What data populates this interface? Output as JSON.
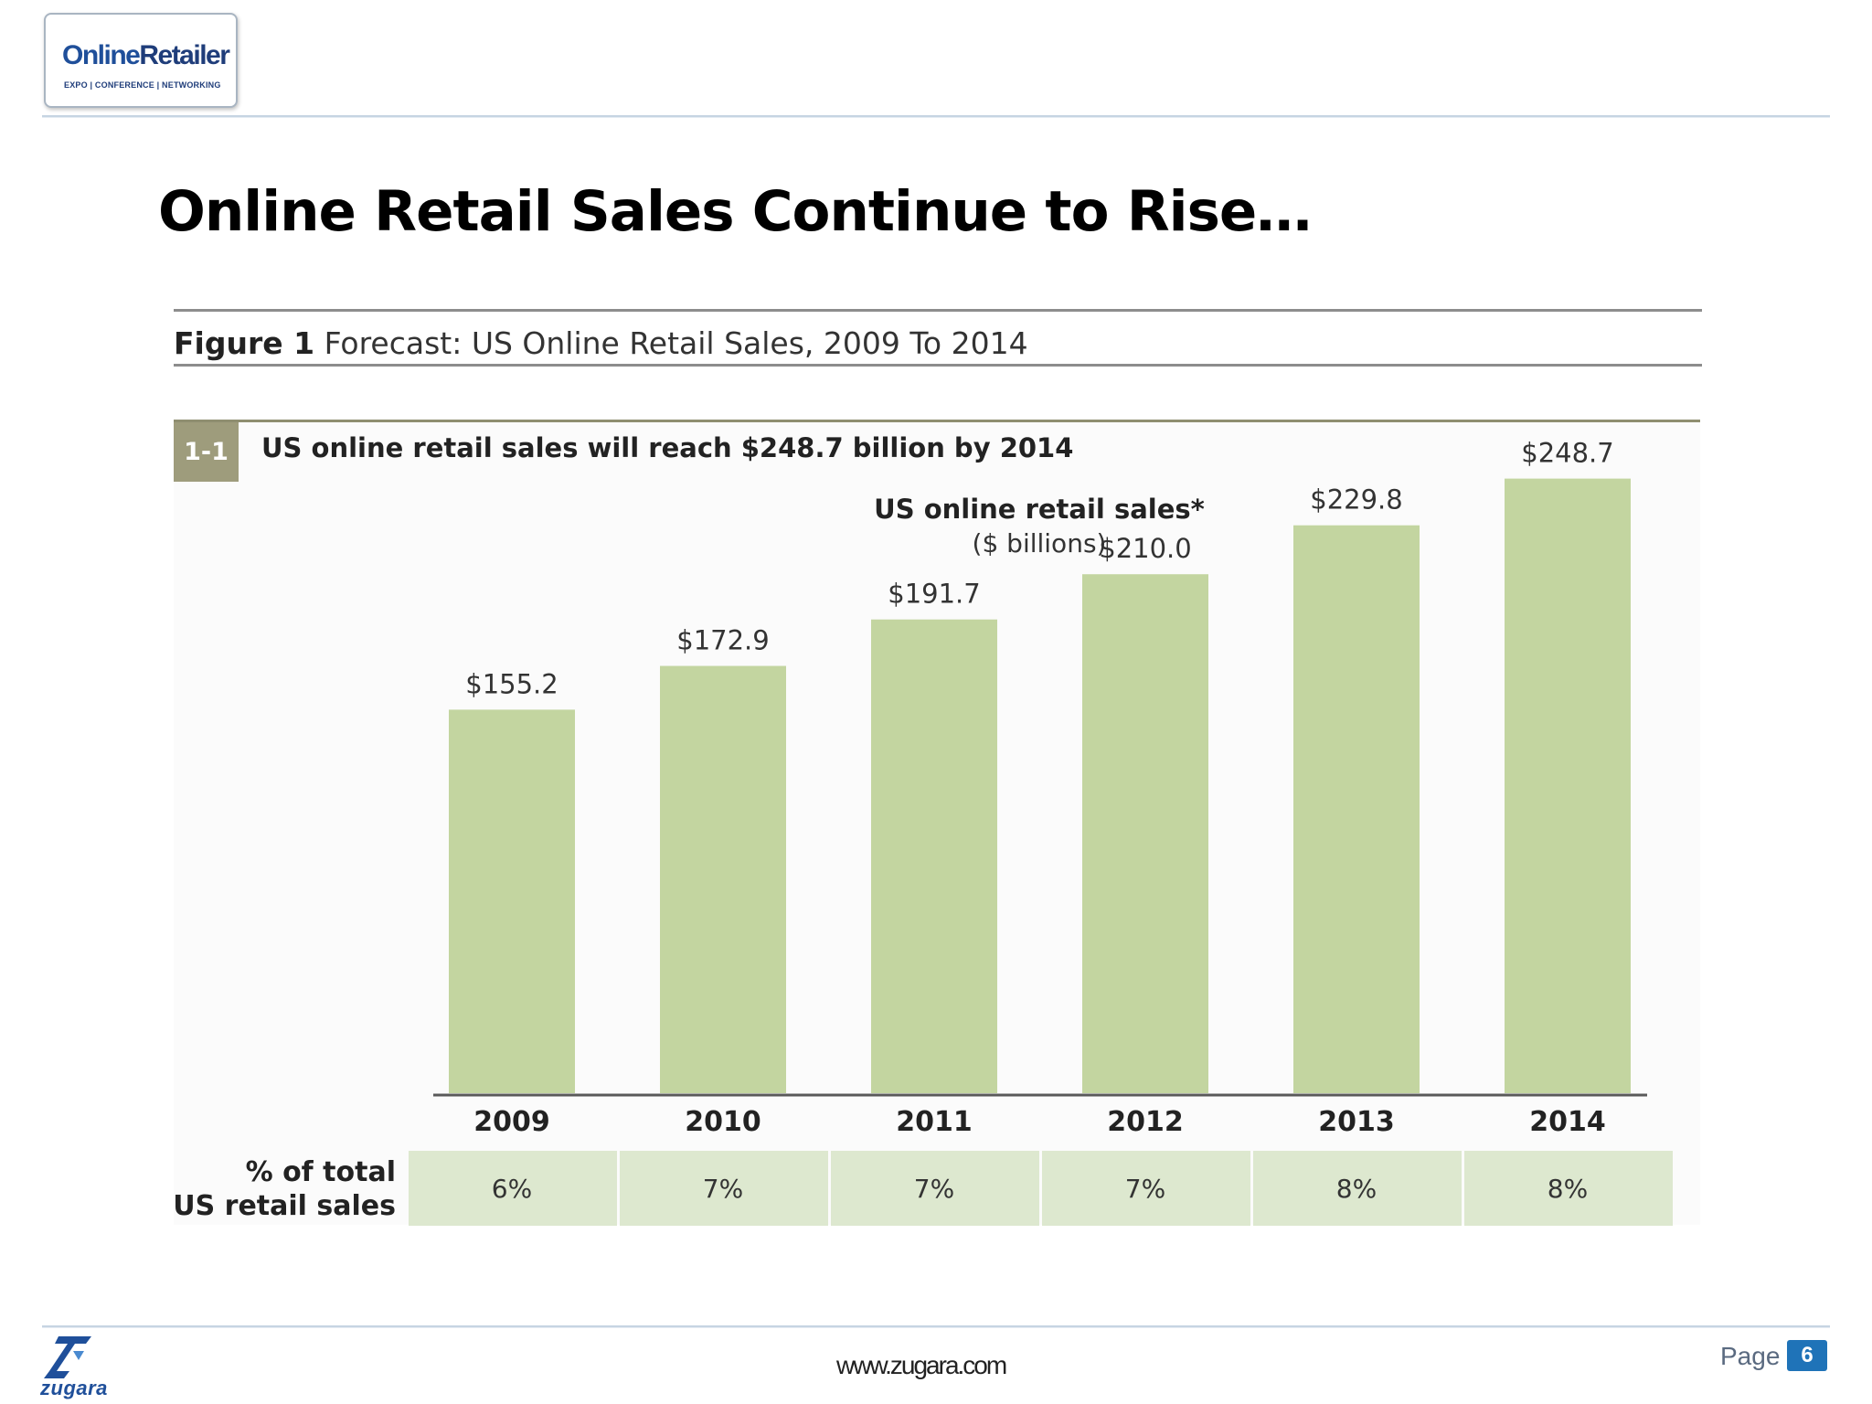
{
  "brand": {
    "logo_main_a": "Online",
    "logo_main_b": "Retailer",
    "logo_sub": "EXPO | CONFERENCE | NETWORKING",
    "footer_logo": "zugara",
    "footer_url": "www.zugara.com",
    "page_label": "Page",
    "page_number": "6"
  },
  "slide": {
    "title": "Online Retail Sales Continue to Rise…"
  },
  "figure": {
    "label": "Figure 1",
    "caption": "Forecast: US Online Retail Sales, 2009 To 2014",
    "badge": "1-1",
    "subtitle": "US online retail sales will reach $248.7 billion by 2014"
  },
  "colors": {
    "bar": "#c3d5a0",
    "table_cell": "#dde8cf",
    "accent_blue": "#1f73b8"
  },
  "chart_data": {
    "type": "bar",
    "title": "US online retail sales*",
    "subtitle": "($ billions)",
    "categories": [
      "2009",
      "2010",
      "2011",
      "2012",
      "2013",
      "2014"
    ],
    "values": [
      155.2,
      172.9,
      191.7,
      210.0,
      229.8,
      248.7
    ],
    "value_labels": [
      "$155.2",
      "$172.9",
      "$191.7",
      "$210.0",
      "$229.8",
      "$248.7"
    ],
    "ylim": [
      0,
      270
    ],
    "table": {
      "row_label_line1": "% of total",
      "row_label_line2": "US retail sales",
      "values": [
        "6%",
        "7%",
        "7%",
        "7%",
        "8%",
        "8%"
      ]
    }
  }
}
